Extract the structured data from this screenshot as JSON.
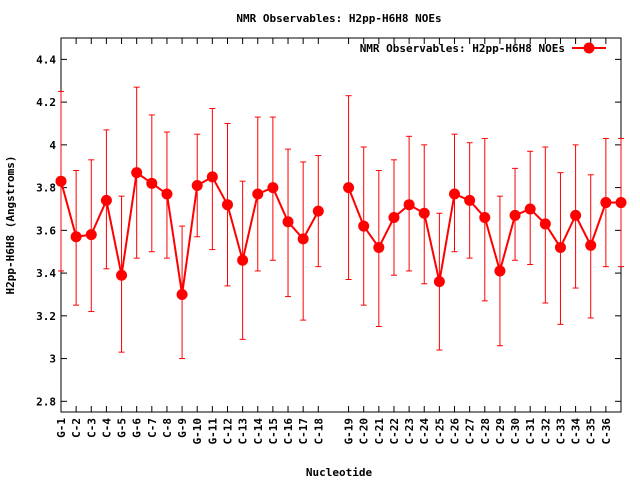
{
  "chart_data": {
    "type": "line",
    "title": "NMR Observables: H2pp-H6H8 NOEs",
    "xlabel": "Nucleotide",
    "ylabel": "H2pp-H6H8 (Angstroms)",
    "ylim": [
      2.75,
      4.5
    ],
    "yticks": [
      2.8,
      3,
      3.2,
      3.4,
      3.6,
      3.8,
      4,
      4.2,
      4.4
    ],
    "ytick_labels": [
      "2.8",
      "3",
      "3.2",
      "3.4",
      "3.6",
      "3.8",
      "4",
      "4.2",
      "4.4"
    ],
    "grid": false,
    "legend_position": "top-right",
    "color": "#ff0000",
    "categories": [
      "G-1",
      "C-2",
      "C-3",
      "C-4",
      "G-5",
      "G-6",
      "C-7",
      "C-8",
      "G-9",
      "G-10",
      "G-11",
      "C-12",
      "C-13",
      "C-14",
      "C-15",
      "C-16",
      "C-17",
      "C-18",
      "G-19",
      "C-20",
      "C-21",
      "C-22",
      "C-23",
      "C-24",
      "C-25",
      "C-26",
      "C-27",
      "C-28",
      "C-29",
      "C-30",
      "C-31",
      "C-32",
      "C-33",
      "C-34",
      "C-35",
      "C-36"
    ],
    "series": [
      {
        "name": "NMR Observables: H2pp-H6H8 NOEs",
        "segments": [
          {
            "positions": [
              1,
              2,
              3,
              4,
              5,
              6,
              7,
              8,
              9,
              10,
              11,
              12,
              13,
              14,
              15,
              16,
              17,
              18
            ],
            "values": [
              3.83,
              3.57,
              3.58,
              3.74,
              3.39,
              3.87,
              3.82,
              3.77,
              3.3,
              3.81,
              3.85,
              3.72,
              3.46,
              3.77,
              3.8,
              3.64,
              3.56,
              3.69
            ],
            "err_high": [
              4.25,
              3.88,
              3.93,
              4.07,
              3.76,
              4.27,
              4.14,
              4.06,
              3.62,
              4.05,
              4.17,
              4.1,
              3.83,
              4.13,
              4.13,
              3.98,
              3.92,
              3.95
            ],
            "err_low": [
              3.41,
              3.25,
              3.22,
              3.42,
              3.03,
              3.47,
              3.5,
              3.47,
              3.0,
              3.57,
              3.51,
              3.34,
              3.09,
              3.41,
              3.46,
              3.29,
              3.18,
              3.43
            ]
          },
          {
            "positions": [
              20,
              21,
              22,
              23,
              24,
              25,
              26,
              27,
              28,
              29,
              30,
              31,
              32,
              33,
              34,
              35,
              36,
              37,
              38
            ],
            "values": [
              3.8,
              3.62,
              3.52,
              3.66,
              3.72,
              3.68,
              3.36,
              3.77,
              3.74,
              3.66,
              3.41,
              3.67,
              3.7,
              3.63,
              3.52,
              3.67,
              3.53,
              3.73,
              3.73
            ],
            "err_high": [
              4.23,
              3.99,
              3.88,
              3.93,
              4.04,
              4.0,
              3.68,
              4.05,
              4.01,
              4.03,
              3.76,
              3.89,
              3.97,
              3.99,
              3.87,
              4.0,
              3.86,
              4.03,
              4.03
            ],
            "err_low": [
              3.37,
              3.25,
              3.15,
              3.39,
              3.41,
              3.35,
              3.04,
              3.5,
              3.47,
              3.27,
              3.06,
              3.46,
              3.44,
              3.26,
              3.16,
              3.33,
              3.19,
              3.43,
              3.43
            ]
          }
        ]
      }
    ]
  }
}
